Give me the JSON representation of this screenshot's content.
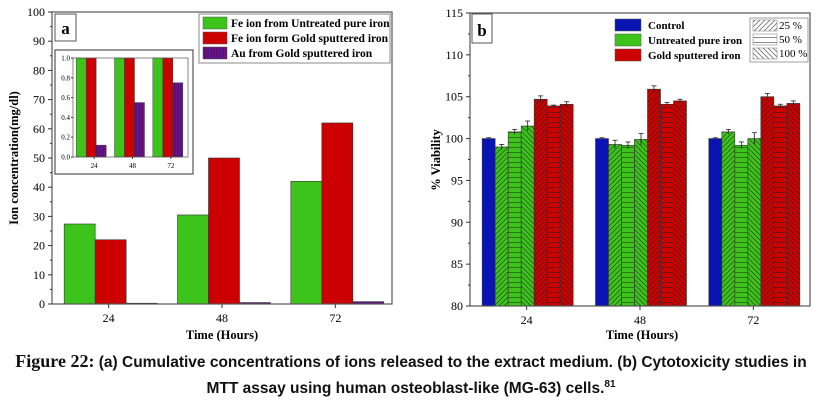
{
  "chart_data": [
    {
      "panel": "a",
      "type": "bar",
      "title": "",
      "xlabel": "Time (Hours)",
      "ylabel": "Ion concentration(mg/dl)",
      "ylim": [
        0,
        100
      ],
      "yticks": [
        0,
        10,
        20,
        30,
        40,
        50,
        60,
        70,
        80,
        90,
        100
      ],
      "categories": [
        "24",
        "48",
        "72"
      ],
      "legend_position": "top-right",
      "series": [
        {
          "name": "Fe ion from Untreated pure iron",
          "color": "#3dc41a",
          "pattern": "solid",
          "values": [
            27.4,
            30.5,
            42.0
          ]
        },
        {
          "name": "Fe ion form Gold sputtered iron",
          "color": "#cc0000",
          "pattern": "solid",
          "values": [
            22.0,
            50.0,
            62.0
          ]
        },
        {
          "name": "Au  from Gold sputtered iron",
          "color": "#7a1070",
          "pattern": "vertical-stripes",
          "values": [
            0.1,
            0.5,
            0.8
          ]
        }
      ],
      "inset": {
        "type": "bar",
        "ylim": [
          0,
          1.0
        ],
        "yticks": [
          "0.0",
          "0.2",
          "0.4",
          "0.6",
          "0.8",
          "1.0"
        ],
        "categories": [
          "24",
          "48",
          "72"
        ],
        "series": [
          {
            "name": "Fe ion from Untreated pure iron",
            "color": "#3dc41a",
            "values": [
              1.0,
              1.0,
              1.0
            ]
          },
          {
            "name": "Fe ion form Gold sputtered iron",
            "color": "#cc0000",
            "values": [
              1.0,
              1.0,
              1.0
            ]
          },
          {
            "name": "Au  from Gold sputtered iron",
            "color": "#7a1070",
            "values": [
              0.12,
              0.55,
              0.75
            ]
          }
        ]
      }
    },
    {
      "panel": "b",
      "type": "bar",
      "title": "",
      "xlabel": "Time (Hours)",
      "ylabel": "% Viability",
      "ylim": [
        80,
        115
      ],
      "yticks": [
        80,
        85,
        90,
        95,
        100,
        105,
        110,
        115
      ],
      "categories": [
        "24",
        "48",
        "72"
      ],
      "legend_position": "top-right",
      "legend_colors": [
        {
          "name": "Control",
          "color": "#0a14b4"
        },
        {
          "name": "Untreated pure iron",
          "color": "#3dc41a"
        },
        {
          "name": "Gold sputtered iron",
          "color": "#cc0000"
        }
      ],
      "legend_patterns": [
        {
          "name": "25 %",
          "pattern": "diag-right"
        },
        {
          "name": "50 %",
          "pattern": "horizontal"
        },
        {
          "name": "100 %",
          "pattern": "diag-left"
        }
      ],
      "series": [
        {
          "name": "Control",
          "color": "#0a14b4",
          "pattern": "solid",
          "values": [
            100.0,
            100.0,
            100.0
          ],
          "errors": [
            0.1,
            0.1,
            0.1
          ]
        },
        {
          "name": "Untreated pure iron 25 %",
          "color": "#3dc41a",
          "pattern": "diag-right",
          "values": [
            99.0,
            99.3,
            100.8
          ],
          "errors": [
            0.3,
            0.5,
            0.3
          ]
        },
        {
          "name": "Untreated pure iron 50 %",
          "color": "#3dc41a",
          "pattern": "horizontal",
          "values": [
            100.8,
            99.2,
            99.2
          ],
          "errors": [
            0.3,
            0.4,
            0.4
          ]
        },
        {
          "name": "Untreated pure iron 100 %",
          "color": "#3dc41a",
          "pattern": "diag-left",
          "values": [
            101.5,
            99.9,
            100.0
          ],
          "errors": [
            0.6,
            0.7,
            0.7
          ]
        },
        {
          "name": "Gold sputtered iron 25 %",
          "color": "#cc0000",
          "pattern": "diag-right",
          "values": [
            104.7,
            105.9,
            105.0
          ],
          "errors": [
            0.4,
            0.4,
            0.4
          ]
        },
        {
          "name": "Gold sputtered iron 50 %",
          "color": "#cc0000",
          "pattern": "horizontal",
          "values": [
            103.9,
            104.1,
            103.9
          ],
          "errors": [
            0.1,
            0.2,
            0.2
          ]
        },
        {
          "name": "Gold sputtered iron 100 %",
          "color": "#cc0000",
          "pattern": "diag-left",
          "values": [
            104.1,
            104.5,
            104.2
          ],
          "errors": [
            0.3,
            0.2,
            0.3
          ]
        }
      ]
    }
  ],
  "labels": {
    "panel_a": "a",
    "panel_b": "b"
  },
  "caption": {
    "figure_label": "Figure 22:",
    "text": " (a) Cumulative concentrations of ions released to the extract medium. (b) Cytotoxicity studies in MTT assay using human osteoblast-like (MG-63) cells.",
    "reference": "81"
  }
}
